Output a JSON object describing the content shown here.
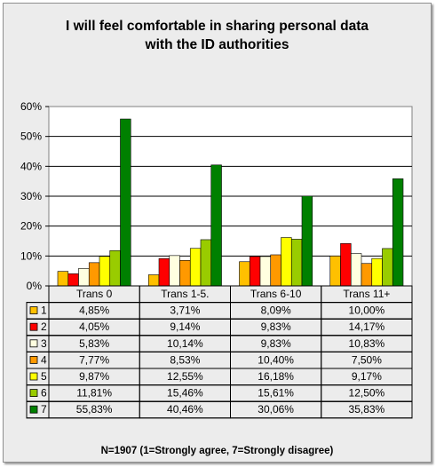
{
  "chart_data": {
    "type": "bar",
    "title_lines": [
      "I will feel comfortable in sharing personal data",
      "with the ID authorities"
    ],
    "categories": [
      "Trans 0",
      "Trans 1-5.",
      "Trans 6-10",
      "Trans 11+"
    ],
    "y_ticks": [
      "0%",
      "10%",
      "20%",
      "30%",
      "40%",
      "50%",
      "60%"
    ],
    "ylim": [
      0,
      60
    ],
    "grid": true,
    "legend": "table-bottom",
    "series": [
      {
        "name": "1",
        "color": "#ffc000",
        "values": [
          4.85,
          3.71,
          8.09,
          10.0
        ],
        "labels": [
          "4,85%",
          "3,71%",
          "8,09%",
          "10,00%"
        ]
      },
      {
        "name": "2",
        "color": "#ff0000",
        "values": [
          4.05,
          9.14,
          9.83,
          14.17
        ],
        "labels": [
          "4,05%",
          "9,14%",
          "9,83%",
          "14,17%"
        ]
      },
      {
        "name": "3",
        "color": "#ffffe0",
        "values": [
          5.83,
          10.14,
          9.83,
          10.83
        ],
        "labels": [
          "5,83%",
          "10,14%",
          "9,83%",
          "10,83%"
        ]
      },
      {
        "name": "4",
        "color": "#ff9900",
        "values": [
          7.77,
          8.53,
          10.4,
          7.5
        ],
        "labels": [
          "7,77%",
          "8,53%",
          "10,40%",
          "7,50%"
        ]
      },
      {
        "name": "5",
        "color": "#ffff00",
        "values": [
          9.87,
          12.55,
          16.18,
          9.17
        ],
        "labels": [
          "9,87%",
          "12,55%",
          "16,18%",
          "9,17%"
        ]
      },
      {
        "name": "6",
        "color": "#99cc00",
        "values": [
          11.81,
          15.46,
          15.61,
          12.5
        ],
        "labels": [
          "11,81%",
          "15,46%",
          "15,61%",
          "12,50%"
        ]
      },
      {
        "name": "7",
        "color": "#008000",
        "values": [
          55.83,
          40.46,
          30.06,
          35.83
        ],
        "labels": [
          "55,83%",
          "40,46%",
          "30,06%",
          "35,83%"
        ]
      }
    ],
    "footnote": "N=1907 (1=Strongly agree, 7=Strongly disagree)"
  }
}
